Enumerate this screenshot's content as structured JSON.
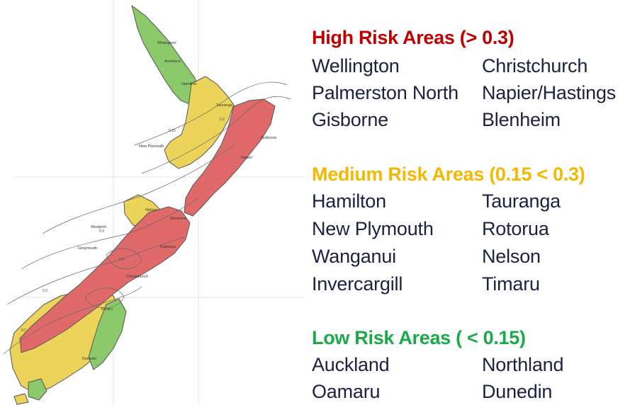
{
  "map": {
    "place_labels": [
      "Whangarei",
      "Auckland",
      "Hamilton",
      "Tauranga",
      "Gisborne",
      "New Plymouth",
      "Napier",
      "Nelson",
      "Blenheim",
      "Westport",
      "Greymouth",
      "Kaikoura",
      "Christchurch",
      "Timaru",
      "Dunedin"
    ],
    "contour_labels": [
      "0.15",
      "0.2",
      "0.3",
      "0.4",
      "0.3",
      "0.2"
    ],
    "colors": {
      "high": "#e06a6a",
      "medium": "#ecd45a",
      "low": "#8bc96a",
      "line": "#555555"
    }
  },
  "legend": {
    "sections": [
      {
        "title": "High Risk Areas (> 0.3)",
        "color": "#c00000",
        "cities": [
          "Wellington",
          "Christchurch",
          "Palmerston North",
          "Napier/Hastings",
          "Gisborne",
          "Blenheim"
        ]
      },
      {
        "title": "Medium Risk Areas (0.15 < 0.3)",
        "color": "#f5b800",
        "cities": [
          "Hamilton",
          "Tauranga",
          "New Plymouth",
          "Rotorua",
          "Wanganui",
          "Nelson",
          "Invercargill",
          "Timaru"
        ]
      },
      {
        "title": "Low Risk Areas ( < 0.15)",
        "color": "#1aaa4a",
        "cities": [
          "Auckland",
          "Northland",
          "Oamaru",
          "Dunedin"
        ]
      }
    ]
  }
}
